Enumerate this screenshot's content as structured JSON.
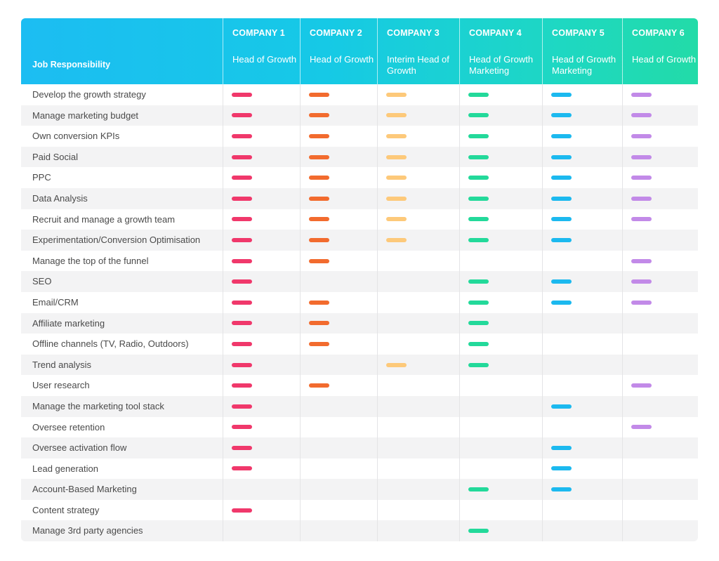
{
  "header": {
    "job_label": "Job Responsibility",
    "companies": [
      {
        "name": "COMPANY 1",
        "title": "Head of Growth",
        "color": "#f0386b"
      },
      {
        "name": "COMPANY 2",
        "title": "Head of Growth",
        "color": "#f26b2e"
      },
      {
        "name": "COMPANY 3",
        "title": "Interim Head of Growth",
        "color": "#fdc97a"
      },
      {
        "name": "COMPANY 4",
        "title": "Head of Growth Marketing",
        "color": "#23d99a"
      },
      {
        "name": "COMPANY 5",
        "title": "Head of Growth Marketing",
        "color": "#1cb9ef"
      },
      {
        "name": "COMPANY 6",
        "title": "Head of Growth",
        "color": "#c28ae8"
      }
    ]
  },
  "chart_data": {
    "type": "table",
    "columns": [
      "COMPANY 1",
      "COMPANY 2",
      "COMPANY 3",
      "COMPANY 4",
      "COMPANY 5",
      "COMPANY 6"
    ],
    "rows": [
      {
        "label": "Develop the growth strategy",
        "values": [
          1,
          1,
          1,
          1,
          1,
          1
        ]
      },
      {
        "label": "Manage marketing budget",
        "values": [
          1,
          1,
          1,
          1,
          1,
          1
        ]
      },
      {
        "label": "Own conversion KPIs",
        "values": [
          1,
          1,
          1,
          1,
          1,
          1
        ]
      },
      {
        "label": "Paid Social",
        "values": [
          1,
          1,
          1,
          1,
          1,
          1
        ]
      },
      {
        "label": "PPC",
        "values": [
          1,
          1,
          1,
          1,
          1,
          1
        ]
      },
      {
        "label": "Data Analysis",
        "values": [
          1,
          1,
          1,
          1,
          1,
          1
        ]
      },
      {
        "label": "Recruit and manage a growth team",
        "values": [
          1,
          1,
          1,
          1,
          1,
          1
        ]
      },
      {
        "label": "Experimentation/Conversion Optimisation",
        "values": [
          1,
          1,
          1,
          1,
          1,
          0
        ]
      },
      {
        "label": "Manage the top of the funnel",
        "values": [
          1,
          1,
          0,
          0,
          0,
          1
        ]
      },
      {
        "label": "SEO",
        "values": [
          1,
          0,
          0,
          1,
          1,
          1
        ]
      },
      {
        "label": "Email/CRM",
        "values": [
          1,
          1,
          0,
          1,
          1,
          1
        ]
      },
      {
        "label": "Affiliate marketing",
        "values": [
          1,
          1,
          0,
          1,
          0,
          0
        ]
      },
      {
        "label": "Offline channels (TV, Radio, Outdoors)",
        "values": [
          1,
          1,
          0,
          1,
          0,
          0
        ]
      },
      {
        "label": "Trend analysis",
        "values": [
          1,
          0,
          1,
          1,
          0,
          0
        ]
      },
      {
        "label": "User research",
        "values": [
          1,
          1,
          0,
          0,
          0,
          1
        ]
      },
      {
        "label": "Manage the marketing tool stack",
        "values": [
          1,
          0,
          0,
          0,
          1,
          0
        ]
      },
      {
        "label": "Oversee retention",
        "values": [
          1,
          0,
          0,
          0,
          0,
          1
        ]
      },
      {
        "label": "Oversee activation flow",
        "values": [
          1,
          0,
          0,
          0,
          1,
          0
        ]
      },
      {
        "label": "Lead generation",
        "values": [
          1,
          0,
          0,
          0,
          1,
          0
        ]
      },
      {
        "label": "Account-Based Marketing",
        "values": [
          0,
          0,
          0,
          1,
          1,
          0
        ]
      },
      {
        "label": "Content strategy",
        "values": [
          1,
          0,
          0,
          0,
          0,
          0
        ]
      },
      {
        "label": "Manage 3rd party agencies",
        "values": [
          0,
          0,
          0,
          1,
          0,
          0
        ]
      }
    ]
  }
}
